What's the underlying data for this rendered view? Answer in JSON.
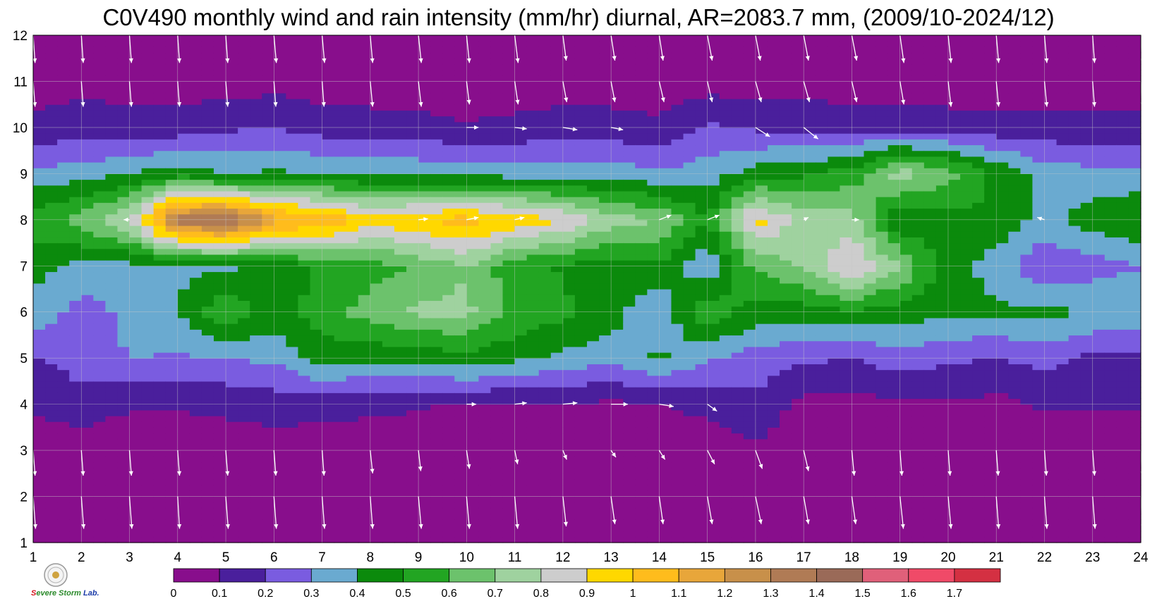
{
  "title": "C0V490 monthly wind and rain intensity (mm/hr) diurnal, AR=2083.7 mm, (2009/10-2024/12)",
  "logo": {
    "text_prefix": "S",
    "text_mid": "evere Storm",
    "text_suffix": " Lab."
  },
  "chart_data": {
    "type": "heatmap",
    "title": "C0V490 monthly wind and rain intensity (mm/hr) diurnal, AR=2083.7 mm, (2009/10-2024/12)",
    "xlabel": "",
    "ylabel": "",
    "x_ticks": [
      1,
      2,
      3,
      4,
      5,
      6,
      7,
      8,
      9,
      10,
      11,
      12,
      13,
      14,
      15,
      16,
      17,
      18,
      19,
      20,
      21,
      22,
      23,
      24
    ],
    "y_ticks": [
      1,
      2,
      3,
      4,
      5,
      6,
      7,
      8,
      9,
      10,
      11,
      12
    ],
    "xlim": [
      1,
      24
    ],
    "ylim": [
      1,
      12
    ],
    "grid": true,
    "colorbar": {
      "levels": [
        0,
        0.1,
        0.2,
        0.3,
        0.4,
        0.5,
        0.6,
        0.7,
        0.8,
        0.9,
        1,
        1.1,
        1.2,
        1.3,
        1.4,
        1.5,
        1.6,
        1.7
      ],
      "labels": [
        "0",
        "0.1",
        "0.2",
        "0.3",
        "0.4",
        "0.5",
        "0.6",
        "0.7",
        "0.8",
        "0.9",
        "1",
        "1.1",
        "1.2",
        "1.3",
        "1.4",
        "1.5",
        "1.6",
        "1.7"
      ],
      "colors": [
        "#880e8c",
        "#4a1f9c",
        "#7a5ce0",
        "#6aaad0",
        "#0b8a0c",
        "#22a522",
        "#6cc26c",
        "#9fd29f",
        "#cdcdcd",
        "#ffd800",
        "#ffbc1c",
        "#e8a63a",
        "#c8904a",
        "#b07b55",
        "#9a6a58",
        "#e0607a",
        "#f04a68",
        "#d43042"
      ]
    },
    "rain_rows": {
      "1": [
        0.02,
        0.02,
        0.02,
        0.02,
        0.02,
        0.02,
        0.02,
        0.02,
        0.02,
        0.02,
        0.02,
        0.02,
        0.02,
        0.02,
        0.02,
        0.02,
        0.02,
        0.02,
        0.02,
        0.02,
        0.02,
        0.02,
        0.02,
        0.02
      ],
      "2": [
        0.03,
        0.03,
        0.03,
        0.03,
        0.03,
        0.03,
        0.03,
        0.03,
        0.03,
        0.03,
        0.03,
        0.03,
        0.03,
        0.03,
        0.03,
        0.03,
        0.03,
        0.03,
        0.03,
        0.03,
        0.03,
        0.03,
        0.03,
        0.03
      ],
      "3": [
        0.04,
        0.05,
        0.04,
        0.04,
        0.05,
        0.06,
        0.05,
        0.05,
        0.04,
        0.04,
        0.04,
        0.04,
        0.04,
        0.04,
        0.05,
        0.08,
        0.06,
        0.05,
        0.05,
        0.04,
        0.04,
        0.04,
        0.04,
        0.04
      ],
      "4": [
        0.12,
        0.15,
        0.11,
        0.11,
        0.12,
        0.14,
        0.13,
        0.12,
        0.11,
        0.09,
        0.09,
        0.09,
        0.08,
        0.1,
        0.12,
        0.18,
        0.06,
        0.06,
        0.08,
        0.09,
        0.07,
        0.11,
        0.11,
        0.11
      ],
      "5": [
        0.19,
        0.25,
        0.3,
        0.29,
        0.3,
        0.32,
        0.45,
        0.42,
        0.43,
        0.47,
        0.42,
        0.38,
        0.33,
        0.42,
        0.32,
        0.25,
        0.22,
        0.2,
        0.25,
        0.22,
        0.19,
        0.24,
        0.17,
        0.17
      ],
      "6": [
        0.38,
        0.25,
        0.33,
        0.4,
        0.6,
        0.45,
        0.55,
        0.65,
        0.72,
        0.72,
        0.58,
        0.52,
        0.45,
        0.3,
        0.58,
        0.45,
        0.45,
        0.48,
        0.45,
        0.42,
        0.42,
        0.42,
        0.4,
        0.38
      ],
      "7": [
        0.43,
        0.37,
        0.37,
        0.38,
        0.38,
        0.42,
        0.52,
        0.55,
        0.62,
        0.7,
        0.52,
        0.49,
        0.44,
        0.48,
        0.32,
        0.62,
        0.72,
        0.9,
        0.7,
        0.46,
        0.35,
        0.22,
        0.25,
        0.3
      ],
      "8": [
        0.55,
        0.65,
        0.8,
        1.35,
        1.45,
        1.15,
        1.1,
        0.95,
        1.0,
        1.05,
        0.98,
        0.9,
        0.75,
        0.7,
        0.5,
        0.95,
        0.75,
        0.75,
        0.4,
        0.45,
        0.48,
        0.36,
        0.46,
        0.5
      ],
      "9": [
        0.33,
        0.35,
        0.4,
        0.45,
        0.4,
        0.42,
        0.4,
        0.38,
        0.38,
        0.36,
        0.36,
        0.35,
        0.35,
        0.32,
        0.35,
        0.45,
        0.48,
        0.55,
        0.75,
        0.65,
        0.48,
        0.36,
        0.33,
        0.33
      ],
      "10": [
        0.12,
        0.15,
        0.14,
        0.14,
        0.18,
        0.2,
        0.15,
        0.14,
        0.13,
        0.11,
        0.12,
        0.15,
        0.14,
        0.12,
        0.22,
        0.18,
        0.17,
        0.16,
        0.16,
        0.14,
        0.13,
        0.13,
        0.13,
        0.13
      ],
      "11": [
        0.05,
        0.08,
        0.05,
        0.05,
        0.05,
        0.06,
        0.05,
        0.05,
        0.05,
        0.04,
        0.05,
        0.05,
        0.05,
        0.05,
        0.05,
        0.05,
        0.05,
        0.05,
        0.05,
        0.05,
        0.05,
        0.05,
        0.05,
        0.05
      ],
      "12": [
        0.03,
        0.03,
        0.03,
        0.03,
        0.03,
        0.03,
        0.03,
        0.03,
        0.03,
        0.03,
        0.03,
        0.03,
        0.03,
        0.03,
        0.03,
        0.03,
        0.03,
        0.03,
        0.03,
        0.03,
        0.03,
        0.03,
        0.03,
        0.03
      ]
    },
    "wind_rows": {
      "1": {
        "x": [
          1,
          2,
          3,
          4,
          5,
          6,
          7,
          8,
          9,
          10,
          11,
          12,
          13,
          14,
          15,
          16,
          17,
          18,
          19,
          20,
          21,
          22,
          23,
          24
        ],
        "dx": [
          0.05,
          0.05,
          0.05,
          0.04,
          0.05,
          0.05,
          0.05,
          0.05,
          0.06,
          0.06,
          0.06,
          0.07,
          0.08,
          0.08,
          0.1,
          0.12,
          0.1,
          0.08,
          0.07,
          0.06,
          0.05,
          0.05,
          0.05,
          0.05
        ],
        "dy": [
          -0.7,
          -0.7,
          -0.7,
          -0.7,
          -0.7,
          -0.7,
          -0.7,
          -0.7,
          -0.7,
          -0.7,
          -0.7,
          -0.65,
          -0.6,
          -0.6,
          -0.6,
          -0.6,
          -0.6,
          -0.6,
          -0.7,
          -0.7,
          -0.7,
          -0.7,
          -0.7,
          -0.7
        ]
      },
      "2": {
        "x": [
          1,
          2,
          3,
          4,
          5,
          6,
          7,
          8,
          9,
          10,
          11,
          12,
          13,
          14,
          15,
          16,
          17,
          18,
          19,
          20,
          21,
          22,
          23,
          24
        ],
        "dx": [
          0.05,
          0.05,
          0.05,
          0.04,
          0.05,
          0.05,
          0.05,
          0.05,
          0.06,
          0.06,
          0.06,
          0.07,
          0.08,
          0.08,
          0.1,
          0.12,
          0.1,
          0.08,
          0.07,
          0.06,
          0.05,
          0.05,
          0.05,
          0.05
        ],
        "dy": [
          -0.7,
          -0.7,
          -0.7,
          -0.7,
          -0.7,
          -0.7,
          -0.7,
          -0.7,
          -0.7,
          -0.7,
          -0.7,
          -0.65,
          -0.6,
          -0.6,
          -0.6,
          -0.6,
          -0.6,
          -0.6,
          -0.7,
          -0.7,
          -0.7,
          -0.7,
          -0.7,
          -0.7
        ]
      },
      "3": {
        "x": [
          1,
          2,
          3,
          4,
          5,
          6,
          7,
          8,
          9,
          10,
          11,
          12,
          13,
          14,
          15,
          16,
          17,
          18,
          19,
          20,
          21,
          22,
          23,
          24
        ],
        "dx": [
          0.04,
          0.04,
          0.04,
          0.04,
          0.04,
          0.04,
          0.04,
          0.05,
          0.05,
          0.06,
          0.06,
          0.08,
          0.1,
          0.12,
          0.15,
          0.14,
          0.1,
          0.05,
          0.04,
          0.04,
          0.04,
          0.04,
          0.04,
          0.04
        ],
        "dy": [
          -0.55,
          -0.55,
          -0.55,
          -0.55,
          -0.55,
          -0.55,
          -0.55,
          -0.5,
          -0.45,
          -0.4,
          -0.3,
          -0.2,
          -0.15,
          -0.2,
          -0.3,
          -0.4,
          -0.45,
          -0.55,
          -0.55,
          -0.55,
          -0.55,
          -0.55,
          -0.55,
          -0.55
        ]
      },
      "4": {
        "x": [
          10,
          11,
          12,
          13,
          14,
          15
        ],
        "dx": [
          0.2,
          0.25,
          0.3,
          0.35,
          0.3,
          0.2
        ],
        "dy": [
          0,
          0.03,
          0.03,
          0,
          -0.05,
          -0.15
        ]
      },
      "8": {
        "x": [
          1,
          3,
          9,
          10,
          11,
          14,
          15,
          17,
          18,
          22,
          24
        ],
        "dx": [
          -0.15,
          -0.12,
          0.2,
          0.25,
          0.2,
          0.25,
          0.25,
          0.1,
          0.15,
          -0.15,
          0.12
        ],
        "dy": [
          0,
          0,
          0.02,
          0.05,
          0.05,
          0.1,
          0.1,
          0.05,
          0.0,
          0.05,
          -0.05
        ]
      },
      "10": {
        "x": [
          10,
          11,
          12,
          13,
          16,
          17
        ],
        "dx": [
          0.25,
          0.25,
          0.3,
          0.25,
          0.3,
          0.3
        ],
        "dy": [
          0,
          -0.03,
          -0.05,
          -0.05,
          -0.2,
          -0.25
        ]
      },
      "11": {
        "x": [
          1,
          2,
          3,
          4,
          5,
          6,
          7,
          8,
          9,
          10,
          11,
          12,
          13,
          14,
          15,
          16,
          17,
          18,
          19,
          20,
          21,
          22,
          23,
          24
        ],
        "dx": [
          0.04,
          0.04,
          0.04,
          0.04,
          0.04,
          0.04,
          0.04,
          0.05,
          0.06,
          0.06,
          0.07,
          0.08,
          0.08,
          0.1,
          0.1,
          0.12,
          0.12,
          0.1,
          0.08,
          0.06,
          0.05,
          0.05,
          0.04,
          0.04
        ],
        "dy": [
          -0.55,
          -0.55,
          -0.55,
          -0.55,
          -0.55,
          -0.55,
          -0.55,
          -0.55,
          -0.55,
          -0.5,
          -0.5,
          -0.45,
          -0.45,
          -0.45,
          -0.45,
          -0.45,
          -0.45,
          -0.45,
          -0.5,
          -0.55,
          -0.55,
          -0.55,
          -0.55,
          -0.55
        ]
      },
      "12": {
        "x": [
          1,
          2,
          3,
          4,
          5,
          6,
          7,
          8,
          9,
          10,
          11,
          12,
          13,
          14,
          15,
          16,
          17,
          18,
          19,
          20,
          21,
          22,
          23,
          24
        ],
        "dx": [
          0.04,
          0.04,
          0.04,
          0.04,
          0.04,
          0.05,
          0.05,
          0.05,
          0.06,
          0.06,
          0.07,
          0.07,
          0.08,
          0.08,
          0.1,
          0.1,
          0.1,
          0.1,
          0.08,
          0.06,
          0.05,
          0.05,
          0.04,
          0.04
        ],
        "dy": [
          -0.6,
          -0.6,
          -0.6,
          -0.6,
          -0.6,
          -0.6,
          -0.6,
          -0.6,
          -0.6,
          -0.6,
          -0.6,
          -0.55,
          -0.55,
          -0.55,
          -0.55,
          -0.55,
          -0.55,
          -0.55,
          -0.6,
          -0.6,
          -0.6,
          -0.6,
          -0.6,
          -0.6
        ]
      }
    }
  }
}
